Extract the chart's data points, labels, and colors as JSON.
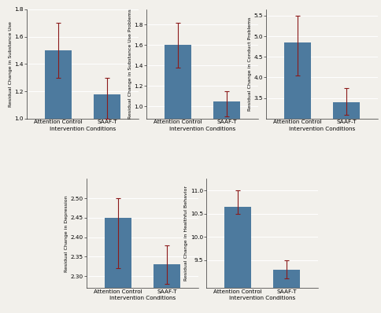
{
  "charts": [
    {
      "ylabel": "Residual Change in Substance Use",
      "xlabel": "Intervention Conditions",
      "categories": [
        "Attention Control",
        "SAAF-T"
      ],
      "values": [
        1.5,
        1.18
      ],
      "ci_low": [
        1.3,
        1.0
      ],
      "ci_high": [
        1.7,
        1.3
      ],
      "ylim": [
        1.0,
        1.8
      ],
      "yticks": [
        1.0,
        1.2,
        1.4,
        1.6,
        1.8
      ]
    },
    {
      "ylabel": "Residual Change in Substance Use Problems",
      "xlabel": "Intervention Conditions",
      "categories": [
        "Attention Control",
        "SAAF-T"
      ],
      "values": [
        1.6,
        1.05
      ],
      "ci_low": [
        1.38,
        0.9
      ],
      "ci_high": [
        1.82,
        1.15
      ],
      "ylim": [
        0.88,
        1.95
      ],
      "yticks": [
        1.0,
        1.2,
        1.4,
        1.6,
        1.8
      ]
    },
    {
      "ylabel": "Residual Change in Conduct Problems",
      "xlabel": "Intervention Conditions",
      "categories": [
        "Attention Control",
        "SAAF-T"
      ],
      "values": [
        4.85,
        3.4
      ],
      "ci_low": [
        4.05,
        3.1
      ],
      "ci_high": [
        5.5,
        3.75
      ],
      "ylim": [
        3.0,
        5.65
      ],
      "yticks": [
        3.5,
        4.0,
        4.5,
        5.0,
        5.5
      ]
    },
    {
      "ylabel": "Residual Change in Depression",
      "xlabel": "Intervention Conditions",
      "categories": [
        "Attention Control",
        "SAAF-T"
      ],
      "values": [
        2.45,
        2.33
      ],
      "ci_low": [
        2.32,
        2.28
      ],
      "ci_high": [
        2.5,
        2.38
      ],
      "ylim": [
        2.27,
        2.55
      ],
      "yticks": [
        2.3,
        2.35,
        2.4,
        2.45,
        2.5
      ]
    },
    {
      "ylabel": "Residual Change in Healthful Behavior",
      "xlabel": "Intervention Conditions",
      "categories": [
        "Attention Control",
        "SAAF-T"
      ],
      "values": [
        10.65,
        9.3
      ],
      "ci_low": [
        10.5,
        9.1
      ],
      "ci_high": [
        11.0,
        9.5
      ],
      "ylim": [
        8.9,
        11.25
      ],
      "yticks": [
        9.5,
        10.0,
        10.5,
        11.0
      ]
    }
  ],
  "bar_color": "#4d7a9e",
  "errorbar_color": "#8b1a1a",
  "bg_color": "#f2f0eb",
  "bar_width": 0.55,
  "ylabel_fontsize": 4.5,
  "xlabel_fontsize": 5.2,
  "tick_fontsize": 5.2
}
